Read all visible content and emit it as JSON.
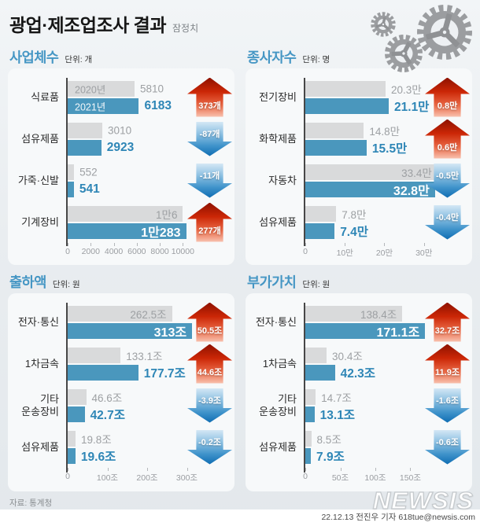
{
  "header": {
    "title": "광업·제조업조사 결과",
    "subtitle": "잠정치"
  },
  "legend": {
    "year_2020": "2020년",
    "year_2021": "2021년"
  },
  "colors": {
    "bar_2020": "#d9dadb",
    "bar_2021": "#4a97bd",
    "section_title": "#4596c4",
    "value_2021_text": "#2e86b6",
    "value_2020_text": "#9da0a3",
    "arrow_up": "#cb2606",
    "arrow_down": "#2f88c4",
    "axis_line": "#474747"
  },
  "footer": {
    "source": "자료: 통계청",
    "logo": "NEWSIS",
    "credit": "22.12.13 전진우 기자 618tue@newsis.com"
  },
  "chart_data": [
    {
      "id": "business-count",
      "type": "bar",
      "title": "사업체수",
      "unit_label": "단위: 개",
      "legend_position": "inside-first-bars",
      "grid": false,
      "axis": {
        "edge_value": 13800,
        "ticks": [
          {
            "v": 0,
            "label": "0"
          },
          {
            "v": 2000,
            "label": "2000"
          },
          {
            "v": 4000,
            "label": "4000"
          },
          {
            "v": 6000,
            "label": "6000"
          },
          {
            "v": 8000,
            "label": "8000"
          },
          {
            "v": 10000,
            "label": "10000"
          }
        ]
      },
      "groups": [
        {
          "category": "식료품",
          "show_year_tags": true,
          "bar2020": {
            "value": 5810,
            "label": "5810",
            "label_inside": false
          },
          "bar2021": {
            "value": 6183,
            "label": "6183",
            "label_inside": false
          },
          "change": {
            "label": "373개",
            "direction": "up"
          }
        },
        {
          "category": "섬유제품",
          "bar2020": {
            "value": 3010,
            "label": "3010",
            "label_inside": false
          },
          "bar2021": {
            "value": 2923,
            "label": "2923",
            "label_inside": false
          },
          "change": {
            "label": "-87개",
            "direction": "down"
          }
        },
        {
          "category": "가죽·신발",
          "bar2020": {
            "value": 552,
            "label": "552",
            "label_inside": false
          },
          "bar2021": {
            "value": 541,
            "label": "541",
            "label_inside": false
          },
          "change": {
            "label": "-11개",
            "direction": "down"
          }
        },
        {
          "category": "기계장비",
          "bar2020": {
            "value": 10006,
            "label": "1만6",
            "label_inside": true
          },
          "bar2021": {
            "value": 10283,
            "label": "1만283",
            "label_inside": true
          },
          "change": {
            "label": "277개",
            "direction": "up"
          }
        }
      ]
    },
    {
      "id": "employees",
      "type": "bar",
      "title": "종사자수",
      "unit_label": "단위: 명",
      "grid": false,
      "axis": {
        "edge_value": 402000,
        "ticks": [
          {
            "v": 0,
            "label": "0"
          },
          {
            "v": 100000,
            "label": "10만"
          },
          {
            "v": 200000,
            "label": "20만"
          },
          {
            "v": 300000,
            "label": "30만"
          }
        ]
      },
      "groups": [
        {
          "category": "전기장비",
          "bar2020": {
            "value": 203000,
            "label": "20.3만",
            "label_inside": false
          },
          "bar2021": {
            "value": 211000,
            "label": "21.1만",
            "label_inside": false
          },
          "change": {
            "label": "0.8만",
            "direction": "up"
          }
        },
        {
          "category": "화학제품",
          "bar2020": {
            "value": 148000,
            "label": "14.8만",
            "label_inside": false
          },
          "bar2021": {
            "value": 155000,
            "label": "15.5만",
            "label_inside": false
          },
          "change": {
            "label": "0.6만",
            "direction": "up"
          }
        },
        {
          "category": "자동차",
          "bar2020": {
            "value": 334000,
            "label": "33.4만",
            "label_inside": true
          },
          "bar2021": {
            "value": 328000,
            "label": "32.8만",
            "label_inside": true
          },
          "change": {
            "label": "-0.5만",
            "direction": "down"
          }
        },
        {
          "category": "섬유제품",
          "bar2020": {
            "value": 78000,
            "label": "7.8만",
            "label_inside": false
          },
          "bar2021": {
            "value": 74000,
            "label": "7.4만",
            "label_inside": false
          },
          "change": {
            "label": "-0.4만",
            "direction": "down"
          }
        }
      ]
    },
    {
      "id": "shipments",
      "type": "bar",
      "title": "출하액",
      "unit_label": "단위: 원",
      "grid": false,
      "axis": {
        "edge_value": 400,
        "ticks": [
          {
            "v": 0,
            "label": "0"
          },
          {
            "v": 100,
            "label": "100조"
          },
          {
            "v": 200,
            "label": "200조"
          },
          {
            "v": 300,
            "label": "300조"
          }
        ]
      },
      "groups": [
        {
          "category": "전자·통신",
          "bar2020": {
            "value": 262.5,
            "label": "262.5조",
            "label_inside": true
          },
          "bar2021": {
            "value": 313,
            "label": "313조",
            "label_inside": true
          },
          "change": {
            "label": "50.5조",
            "direction": "up"
          }
        },
        {
          "category": "1차금속",
          "bar2020": {
            "value": 133.1,
            "label": "133.1조",
            "label_inside": false
          },
          "bar2021": {
            "value": 177.7,
            "label": "177.7조",
            "label_inside": false
          },
          "change": {
            "label": "44.6조",
            "direction": "up"
          }
        },
        {
          "category": "기타\n운송장비",
          "bar2020": {
            "value": 46.6,
            "label": "46.6조",
            "label_inside": false
          },
          "bar2021": {
            "value": 42.7,
            "label": "42.7조",
            "label_inside": false
          },
          "change": {
            "label": "-3.9조",
            "direction": "down"
          }
        },
        {
          "category": "섬유제품",
          "bar2020": {
            "value": 19.8,
            "label": "19.8조",
            "label_inside": false
          },
          "bar2021": {
            "value": 19.6,
            "label": "19.6조",
            "label_inside": false
          },
          "change": {
            "label": "-0.2조",
            "direction": "down"
          }
        }
      ]
    },
    {
      "id": "value-added",
      "type": "bar",
      "title": "부가가치",
      "unit_label": "단위: 원",
      "grid": false,
      "axis": {
        "edge_value": 227,
        "ticks": [
          {
            "v": 0,
            "label": "0"
          },
          {
            "v": 50,
            "label": "50조"
          },
          {
            "v": 100,
            "label": "100조"
          },
          {
            "v": 150,
            "label": "150조"
          }
        ]
      },
      "groups": [
        {
          "category": "전자·통신",
          "bar2020": {
            "value": 138.4,
            "label": "138.4조",
            "label_inside": true
          },
          "bar2021": {
            "value": 171.1,
            "label": "171.1조",
            "label_inside": true
          },
          "change": {
            "label": "32.7조",
            "direction": "up"
          }
        },
        {
          "category": "1차금속",
          "bar2020": {
            "value": 30.4,
            "label": "30.4조",
            "label_inside": false
          },
          "bar2021": {
            "value": 42.3,
            "label": "42.3조",
            "label_inside": false
          },
          "change": {
            "label": "11.9조",
            "direction": "up"
          }
        },
        {
          "category": "기타\n운송장비",
          "bar2020": {
            "value": 14.7,
            "label": "14.7조",
            "label_inside": false
          },
          "bar2021": {
            "value": 13.1,
            "label": "13.1조",
            "label_inside": false
          },
          "change": {
            "label": "-1.6조",
            "direction": "down"
          }
        },
        {
          "category": "섬유제품",
          "bar2020": {
            "value": 8.5,
            "label": "8.5조",
            "label_inside": false
          },
          "bar2021": {
            "value": 7.9,
            "label": "7.9조",
            "label_inside": false
          },
          "change": {
            "label": "-0.6조",
            "direction": "down"
          }
        }
      ]
    }
  ]
}
